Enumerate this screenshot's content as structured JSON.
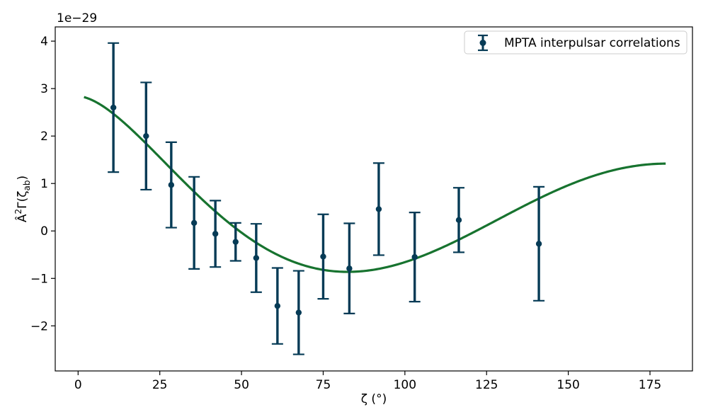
{
  "chart_data": {
    "type": "scatter",
    "xlabel": "ζ (°)",
    "ylabel": "Â²Γ(ζ_ab)",
    "ylabel_parts": {
      "base": "Â",
      "sup": "2",
      "mid": "Γ(ζ",
      "sub": "ab",
      "end": ")"
    },
    "offset_text": "1e−29",
    "xlim": [
      -7,
      188
    ],
    "ylim": [
      -2.95,
      4.3
    ],
    "y_scale_factor": "1e-29",
    "x_ticks": [
      0,
      25,
      50,
      75,
      100,
      125,
      150,
      175
    ],
    "x_tick_labels": [
      "0",
      "25",
      "50",
      "75",
      "100",
      "125",
      "150",
      "175"
    ],
    "y_ticks": [
      -2,
      -1,
      0,
      1,
      2,
      3,
      4
    ],
    "y_tick_labels": [
      "−2",
      "−1",
      "0",
      "1",
      "2",
      "3",
      "4"
    ],
    "grid": false,
    "legend": {
      "position": "top-right",
      "entries": [
        "MPTA interpulsar correlations"
      ]
    },
    "colors": {
      "points": "#063b56",
      "curve": "#17732f",
      "axes": "#000000",
      "legend_border": "#cccccc"
    },
    "series": [
      {
        "name": "MPTA interpulsar correlations",
        "kind": "errorbar",
        "x": [
          10.8,
          20.8,
          28.5,
          35.5,
          42.0,
          48.2,
          54.5,
          61.0,
          67.5,
          75.0,
          83.0,
          92.0,
          103.0,
          116.5,
          141.0
        ],
        "y": [
          2.6,
          2.0,
          0.97,
          0.17,
          -0.06,
          -0.23,
          -0.57,
          -1.58,
          -1.72,
          -0.54,
          -0.79,
          0.46,
          -0.55,
          0.23,
          -0.27
        ],
        "yerr": [
          1.36,
          1.13,
          0.9,
          0.97,
          0.7,
          0.4,
          0.72,
          0.8,
          0.88,
          0.89,
          0.95,
          0.97,
          0.94,
          0.68,
          1.2
        ]
      },
      {
        "kind": "line",
        "function": "hellings-downs",
        "amplitude": 2.82,
        "x_range": [
          1.8,
          180
        ]
      }
    ]
  }
}
